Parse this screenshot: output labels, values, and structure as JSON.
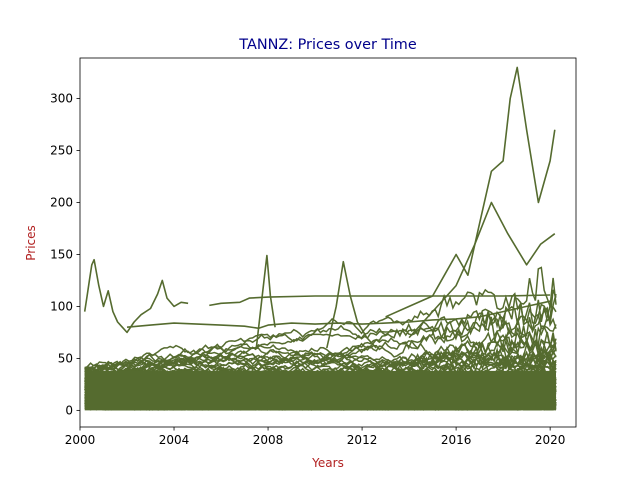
{
  "chart_data": {
    "type": "line",
    "title": "TANNZ: Prices over Time",
    "xlabel": "Years",
    "ylabel": "Prices",
    "xlim": [
      2000.0,
      2021.1
    ],
    "ylim": [
      -16,
      339
    ],
    "xticks": [
      2000,
      2004,
      2008,
      2012,
      2016,
      2020
    ],
    "yticks": [
      0,
      50,
      100,
      150,
      200,
      250,
      300
    ],
    "grid": false,
    "legend": "none",
    "colors": {
      "series": "#556b2f",
      "title": "#00008b",
      "axis_label": "#b22222"
    },
    "series": [
      {
        "x": [
          2000.2,
          2000.3,
          2000.4,
          2000.5,
          2000.6,
          2000.8,
          2001.0,
          2001.2,
          2001.4,
          2001.6,
          2001.8,
          2002.0,
          2002.3,
          2002.6,
          2003.0,
          2003.3,
          2003.5,
          2003.7,
          2004.0,
          2004.3,
          2004.6
        ],
        "y": [
          95,
          110,
          125,
          140,
          145,
          120,
          100,
          115,
          95,
          85,
          80,
          75,
          85,
          92,
          98,
          112,
          125,
          108,
          100,
          104,
          103
        ]
      },
      {
        "x": [
          2002.0,
          2003.0,
          2004.0,
          2005.0,
          2006.0,
          2007.0,
          2007.6,
          2008.0,
          2009.0,
          2010.0,
          2011.0,
          2012.0,
          2013.0,
          2014.0,
          2015.0,
          2016.0,
          2017.0,
          2018.0,
          2019.0,
          2020.0
        ],
        "y": [
          80,
          82,
          84,
          83,
          82,
          81,
          79,
          82,
          84,
          83,
          84,
          83,
          84,
          85,
          87,
          88,
          90,
          95,
          100,
          105
        ]
      },
      {
        "x": [
          2005.5,
          2006.0,
          2006.8,
          2007.2,
          2008.0,
          2010.0,
          2012.0,
          2014.0,
          2016.0,
          2018.0,
          2020.0
        ],
        "y": [
          101,
          103,
          104,
          108,
          109,
          110,
          110,
          110,
          110,
          110,
          111
        ]
      },
      {
        "x": [
          2010.5,
          2010.9,
          2011.2,
          2011.5,
          2011.8,
          2012.2,
          2012.6
        ],
        "y": [
          60,
          100,
          143,
          110,
          85,
          70,
          60
        ]
      },
      {
        "x": [
          2007.5,
          2007.8,
          2007.95,
          2008.1,
          2008.3
        ],
        "y": [
          60,
          120,
          149,
          110,
          80
        ]
      },
      {
        "x": [
          2013.0,
          2014.0,
          2015.0,
          2015.5,
          2016.0,
          2016.5,
          2017.0,
          2017.5,
          2018.0,
          2018.3,
          2018.6,
          2019.0,
          2019.5,
          2020.0,
          2020.2
        ],
        "y": [
          90,
          100,
          110,
          130,
          150,
          130,
          180,
          230,
          240,
          300,
          330,
          270,
          200,
          240,
          270
        ]
      },
      {
        "x": [
          2014.0,
          2015.0,
          2016.0,
          2016.8,
          2017.5,
          2018.2,
          2019.0,
          2019.6,
          2020.2
        ],
        "y": [
          70,
          95,
          120,
          160,
          200,
          170,
          140,
          160,
          170
        ]
      }
    ]
  }
}
